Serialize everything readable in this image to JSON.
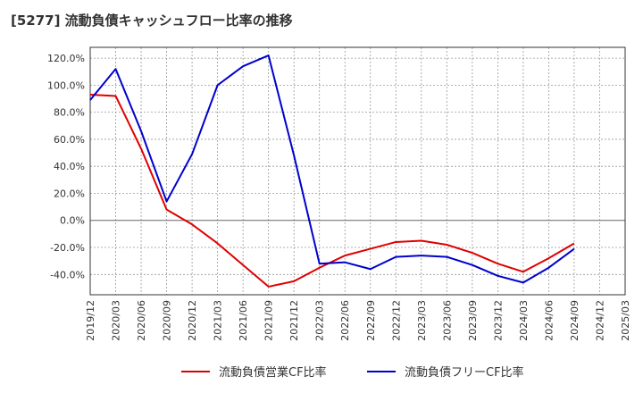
{
  "title": "[5277]  流動負債キャッシュフロー比率の推移",
  "chart_data": {
    "type": "line",
    "title": "[5277]  流動負債キャッシュフロー比率の推移",
    "xlabel": "",
    "ylabel": "",
    "ylim": [
      -55,
      128
    ],
    "yticks": [
      120,
      100,
      80,
      60,
      40,
      20,
      0,
      -20,
      -40
    ],
    "ytick_labels": [
      "120.0%",
      "100.0%",
      "80.0%",
      "60.0%",
      "40.0%",
      "20.0%",
      "0.0%",
      "-20.0%",
      "-40.0%"
    ],
    "categories": [
      "2019/12",
      "2020/03",
      "2020/06",
      "2020/09",
      "2020/12",
      "2021/03",
      "2021/06",
      "2021/09",
      "2021/12",
      "2022/03",
      "2022/06",
      "2022/09",
      "2022/12",
      "2023/03",
      "2023/06",
      "2023/09",
      "2023/12",
      "2024/03",
      "2024/06",
      "2024/09",
      "2024/12",
      "2025/03"
    ],
    "grid": true,
    "legend_position": "bottom",
    "series": [
      {
        "name": "流動負債営業CF比率",
        "color": "#e00000",
        "values": [
          93,
          92,
          53,
          8,
          -3,
          -17,
          -33,
          -49,
          -45,
          -35,
          -26,
          -21,
          -16,
          -15,
          -18,
          -24,
          -32,
          -38,
          -28,
          -17,
          null,
          null
        ]
      },
      {
        "name": "流動負債フリーCF比率",
        "color": "#0000cc",
        "values": [
          89,
          112,
          66,
          14,
          49,
          100,
          114,
          122,
          48,
          -32,
          -31,
          -36,
          -27,
          -26,
          -27,
          -33,
          -41,
          -46,
          -35,
          -21,
          null,
          null
        ]
      }
    ]
  }
}
